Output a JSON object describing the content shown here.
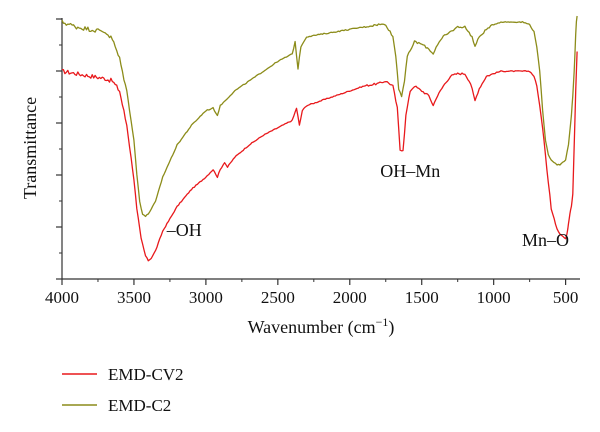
{
  "chart_data": {
    "type": "line",
    "xlabel": "Wavenumber (cm",
    "xlabel_sup": "−1",
    "xlabel_close": ")",
    "ylabel": "Transmittance",
    "xlim": [
      4000,
      400
    ],
    "x_reversed": true,
    "ylim": [
      0,
      1
    ],
    "y_ticks_unlabeled": true,
    "grid": false,
    "legend_position": "bottom-left-outside",
    "x_ticks": [
      {
        "value": 4000,
        "label": "4000"
      },
      {
        "value": 3500,
        "label": "3500"
      },
      {
        "value": 3000,
        "label": "3000"
      },
      {
        "value": 2500,
        "label": "2500"
      },
      {
        "value": 2000,
        "label": "2000"
      },
      {
        "value": 1500,
        "label": "1500"
      },
      {
        "value": 1000,
        "label": "1000"
      },
      {
        "value": 500,
        "label": "500"
      }
    ],
    "annotations": [
      {
        "text": "–OH",
        "x": 3150,
        "y": 0.13
      },
      {
        "text": "OH–Mn",
        "x": 1580,
        "y": 0.37
      },
      {
        "text": "Mn–O",
        "x": 640,
        "y": 0.09
      }
    ],
    "series": [
      {
        "name": "EMD-CV2",
        "color": "#e8191c",
        "points": [
          [
            4000,
            0.8
          ],
          [
            3900,
            0.79
          ],
          [
            3800,
            0.78
          ],
          [
            3700,
            0.77
          ],
          [
            3650,
            0.76
          ],
          [
            3600,
            0.72
          ],
          [
            3550,
            0.58
          ],
          [
            3500,
            0.36
          ],
          [
            3480,
            0.24
          ],
          [
            3450,
            0.12
          ],
          [
            3420,
            0.05
          ],
          [
            3400,
            0.03
          ],
          [
            3380,
            0.04
          ],
          [
            3350,
            0.07
          ],
          [
            3300,
            0.15
          ],
          [
            3200,
            0.25
          ],
          [
            3100,
            0.32
          ],
          [
            3000,
            0.37
          ],
          [
            2950,
            0.4
          ],
          [
            2920,
            0.37
          ],
          [
            2900,
            0.4
          ],
          [
            2870,
            0.43
          ],
          [
            2850,
            0.41
          ],
          [
            2800,
            0.45
          ],
          [
            2700,
            0.5
          ],
          [
            2600,
            0.54
          ],
          [
            2500,
            0.57
          ],
          [
            2400,
            0.6
          ],
          [
            2370,
            0.65
          ],
          [
            2350,
            0.58
          ],
          [
            2330,
            0.64
          ],
          [
            2300,
            0.66
          ],
          [
            2200,
            0.68
          ],
          [
            2100,
            0.7
          ],
          [
            2000,
            0.72
          ],
          [
            1900,
            0.74
          ],
          [
            1800,
            0.75
          ],
          [
            1750,
            0.76
          ],
          [
            1700,
            0.74
          ],
          [
            1670,
            0.65
          ],
          [
            1650,
            0.48
          ],
          [
            1630,
            0.48
          ],
          [
            1610,
            0.62
          ],
          [
            1580,
            0.72
          ],
          [
            1550,
            0.74
          ],
          [
            1500,
            0.72
          ],
          [
            1450,
            0.7
          ],
          [
            1420,
            0.66
          ],
          [
            1400,
            0.69
          ],
          [
            1350,
            0.74
          ],
          [
            1300,
            0.78
          ],
          [
            1250,
            0.79
          ],
          [
            1200,
            0.79
          ],
          [
            1160,
            0.75
          ],
          [
            1130,
            0.68
          ],
          [
            1100,
            0.73
          ],
          [
            1050,
            0.78
          ],
          [
            1000,
            0.79
          ],
          [
            950,
            0.8
          ],
          [
            900,
            0.8
          ],
          [
            850,
            0.8
          ],
          [
            800,
            0.8
          ],
          [
            750,
            0.8
          ],
          [
            720,
            0.78
          ],
          [
            700,
            0.74
          ],
          [
            680,
            0.66
          ],
          [
            650,
            0.52
          ],
          [
            630,
            0.4
          ],
          [
            610,
            0.3
          ],
          [
            600,
            0.24
          ],
          [
            580,
            0.2
          ],
          [
            560,
            0.16
          ],
          [
            540,
            0.14
          ],
          [
            520,
            0.13
          ],
          [
            500,
            0.12
          ],
          [
            490,
            0.14
          ],
          [
            480,
            0.18
          ],
          [
            470,
            0.22
          ],
          [
            460,
            0.25
          ],
          [
            450,
            0.3
          ],
          [
            440,
            0.5
          ],
          [
            430,
            0.72
          ],
          [
            420,
            0.88
          ]
        ]
      },
      {
        "name": "EMD-C2",
        "color": "#8c8c1a",
        "points": [
          [
            4000,
            1.0
          ],
          [
            3900,
            0.98
          ],
          [
            3800,
            0.97
          ],
          [
            3700,
            0.96
          ],
          [
            3650,
            0.93
          ],
          [
            3600,
            0.85
          ],
          [
            3550,
            0.72
          ],
          [
            3500,
            0.52
          ],
          [
            3480,
            0.38
          ],
          [
            3460,
            0.27
          ],
          [
            3440,
            0.22
          ],
          [
            3420,
            0.21
          ],
          [
            3400,
            0.22
          ],
          [
            3350,
            0.27
          ],
          [
            3300,
            0.37
          ],
          [
            3200,
            0.5
          ],
          [
            3100,
            0.58
          ],
          [
            3000,
            0.64
          ],
          [
            2950,
            0.65
          ],
          [
            2920,
            0.62
          ],
          [
            2900,
            0.66
          ],
          [
            2850,
            0.69
          ],
          [
            2800,
            0.72
          ],
          [
            2700,
            0.76
          ],
          [
            2600,
            0.8
          ],
          [
            2500,
            0.84
          ],
          [
            2400,
            0.87
          ],
          [
            2380,
            0.92
          ],
          [
            2360,
            0.81
          ],
          [
            2340,
            0.9
          ],
          [
            2300,
            0.94
          ],
          [
            2200,
            0.95
          ],
          [
            2100,
            0.96
          ],
          [
            2000,
            0.97
          ],
          [
            1900,
            0.98
          ],
          [
            1800,
            0.99
          ],
          [
            1750,
            0.99
          ],
          [
            1700,
            0.94
          ],
          [
            1680,
            0.86
          ],
          [
            1660,
            0.73
          ],
          [
            1640,
            0.7
          ],
          [
            1620,
            0.76
          ],
          [
            1600,
            0.86
          ],
          [
            1550,
            0.92
          ],
          [
            1500,
            0.91
          ],
          [
            1450,
            0.89
          ],
          [
            1420,
            0.87
          ],
          [
            1400,
            0.9
          ],
          [
            1350,
            0.94
          ],
          [
            1300,
            0.96
          ],
          [
            1250,
            0.98
          ],
          [
            1200,
            0.98
          ],
          [
            1150,
            0.94
          ],
          [
            1130,
            0.9
          ],
          [
            1100,
            0.94
          ],
          [
            1050,
            0.97
          ],
          [
            1000,
            0.99
          ],
          [
            950,
            1.0
          ],
          [
            900,
            1.0
          ],
          [
            850,
            1.0
          ],
          [
            800,
            1.0
          ],
          [
            750,
            0.99
          ],
          [
            720,
            0.96
          ],
          [
            700,
            0.9
          ],
          [
            680,
            0.8
          ],
          [
            660,
            0.64
          ],
          [
            640,
            0.52
          ],
          [
            620,
            0.46
          ],
          [
            600,
            0.44
          ],
          [
            580,
            0.43
          ],
          [
            560,
            0.42
          ],
          [
            540,
            0.42
          ],
          [
            520,
            0.43
          ],
          [
            500,
            0.44
          ],
          [
            480,
            0.5
          ],
          [
            460,
            0.62
          ],
          [
            450,
            0.7
          ],
          [
            440,
            0.8
          ],
          [
            430,
            0.95
          ],
          [
            420,
            1.05
          ]
        ]
      }
    ]
  }
}
